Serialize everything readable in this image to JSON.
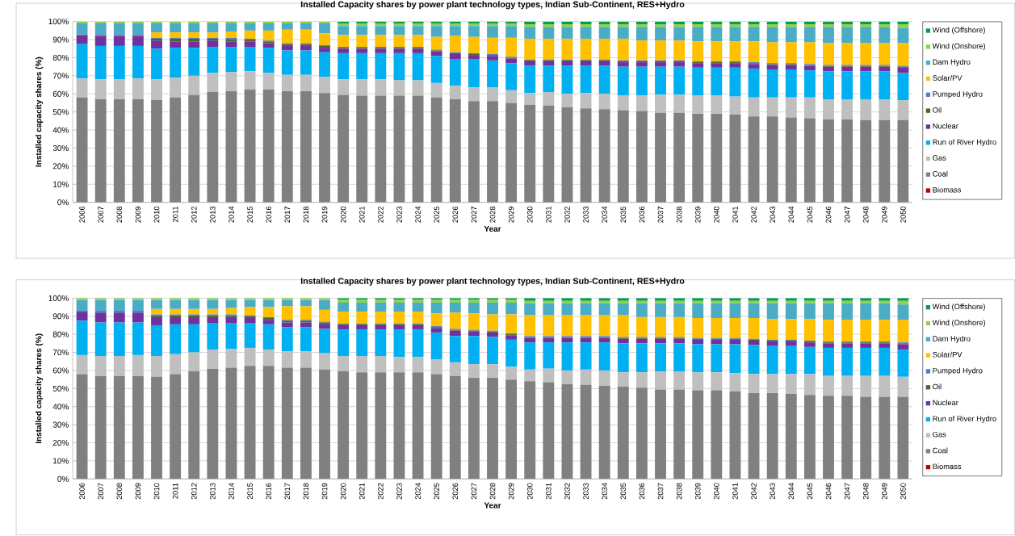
{
  "chart_data": [
    {
      "type": "bar",
      "stacked": true,
      "title": "Installed Capacity shares by power plant technology types, Indian Sub-Continent, RES+Hydro",
      "xlabel": "Year",
      "ylabel": "Installed capacity shares (%)",
      "legend": "right",
      "grid": "y",
      "categories": [
        "2006",
        "2007",
        "2008",
        "2009",
        "2010",
        "2011",
        "2012",
        "2013",
        "2014",
        "2015",
        "2016",
        "2017",
        "2018",
        "2019",
        "2020",
        "2021",
        "2022",
        "2023",
        "2024",
        "2025",
        "2026",
        "2027",
        "2028",
        "2029",
        "2030",
        "2031",
        "2032",
        "2033",
        "2034",
        "2035",
        "2036",
        "2037",
        "2038",
        "2039",
        "2040",
        "2041",
        "2042",
        "2043",
        "2044",
        "2045",
        "2046",
        "2047",
        "2048",
        "2049",
        "2050"
      ],
      "ylim": [
        0,
        100
      ],
      "yticks": [
        {
          "value": 0,
          "label": "0%"
        },
        {
          "value": 10,
          "label": "10%"
        },
        {
          "value": 20,
          "label": "20%"
        },
        {
          "value": 30,
          "label": "30%"
        },
        {
          "value": 40,
          "label": "40%"
        },
        {
          "value": 50,
          "label": "50%"
        },
        {
          "value": 60,
          "label": "60%"
        },
        {
          "value": 70,
          "label": "70%"
        },
        {
          "value": 80,
          "label": "80%"
        },
        {
          "value": 90,
          "label": "90%"
        },
        {
          "value": 100,
          "label": "100%"
        }
      ],
      "series": [
        {
          "name": "Biomass",
          "color": "#c00000",
          "values": [
            0,
            0,
            0,
            0,
            0,
            0,
            0,
            0,
            0,
            0,
            0,
            0,
            0,
            0,
            0,
            0,
            0,
            0,
            0,
            0,
            0,
            0,
            0,
            0,
            0,
            0,
            0,
            0,
            0,
            0,
            0,
            0,
            0,
            0,
            0,
            0,
            0,
            0,
            0,
            0,
            0,
            0,
            0,
            0,
            0
          ]
        },
        {
          "name": "Coal",
          "color": "#808080",
          "values": [
            58,
            57,
            57,
            57,
            56.5,
            58,
            59.5,
            61,
            61.5,
            62.5,
            62.5,
            61.5,
            61.5,
            60.5,
            59.5,
            59,
            59,
            59,
            59,
            58,
            57,
            56,
            56,
            55,
            54,
            53.5,
            52.5,
            52,
            51.5,
            51,
            50.5,
            49.5,
            49.5,
            49,
            49,
            48.5,
            47.5,
            47.5,
            47,
            46.5,
            46,
            46,
            45.5,
            45.5,
            45.5
          ]
        },
        {
          "name": "Gas",
          "color": "#bfbfbf",
          "values": [
            10.5,
            11,
            11,
            11.5,
            11.5,
            11,
            10.5,
            10.5,
            10.5,
            10,
            9,
            9,
            9,
            9,
            8.5,
            9,
            9,
            8.5,
            8.5,
            8,
            7.5,
            7.5,
            7.5,
            7,
            6.5,
            7.5,
            7.5,
            8.5,
            8.5,
            8,
            8.5,
            10,
            10,
            10,
            10,
            10,
            10.5,
            10.5,
            11,
            11.5,
            11,
            11,
            11.5,
            11.5,
            11
          ]
        },
        {
          "name": "Run of River Hydro",
          "color": "#00b0f0",
          "values": [
            19,
            18.5,
            18.5,
            18,
            17,
            16.5,
            15.5,
            14.5,
            14,
            13.5,
            14,
            13.5,
            13.5,
            13.5,
            14.5,
            14.5,
            14.5,
            15,
            15,
            15,
            14.5,
            15.5,
            15,
            15,
            15,
            14.5,
            15.5,
            15,
            15.5,
            16,
            16,
            15.5,
            15.5,
            15.5,
            15.5,
            16,
            16,
            15.5,
            15.5,
            15,
            15.5,
            15.5,
            15.5,
            15.5,
            15
          ]
        },
        {
          "name": "Nuclear",
          "color": "#7030a0",
          "values": [
            5,
            5.5,
            5.5,
            5.5,
            4.5,
            3.5,
            3.5,
            3.5,
            3,
            3,
            2.5,
            2.5,
            2.5,
            2.5,
            2.5,
            2.5,
            2.5,
            2.5,
            2.5,
            2.5,
            3,
            2.5,
            2.5,
            2.5,
            2.5,
            2.5,
            2.5,
            2.5,
            2.5,
            2.5,
            2.5,
            2.5,
            2.5,
            2.5,
            2.5,
            2.5,
            2.5,
            2.5,
            2.5,
            2.5,
            2.5,
            2.5,
            2.5,
            2.5,
            3
          ]
        },
        {
          "name": "Oil",
          "color": "#4f6228",
          "values": [
            null,
            null,
            null,
            null,
            1,
            1.5,
            1.5,
            1,
            1,
            1,
            1,
            1,
            1,
            1,
            0.5,
            0.5,
            0.5,
            0.5,
            0.5,
            0.5,
            0.5,
            0.5,
            0.5,
            0.5,
            0.5,
            0.5,
            0.5,
            0.5,
            0.5,
            0.5,
            0.5,
            0.5,
            0.5,
            0.5,
            0.5,
            0.5,
            0.5,
            0.5,
            0.5,
            0.5,
            0.5,
            0.5,
            0.5,
            0.5,
            0.5
          ]
        },
        {
          "name": "Pumped Hydro",
          "color": "#4f81bd",
          "values": [
            0.5,
            1,
            1,
            1,
            0.5,
            0.5,
            0.5,
            0.5,
            1,
            0.5,
            0.5,
            0.5,
            0.5,
            0.5,
            0.5,
            0.5,
            0.5,
            0.5,
            0.5,
            0.5,
            0.5,
            0.5,
            0.5,
            0.5,
            0.5,
            0.5,
            0.5,
            0.5,
            0.5,
            0.5,
            0.5,
            0.5,
            0.5,
            0.5,
            0.5,
            0.5,
            0.5,
            0.5,
            0.5,
            0.5,
            0.5,
            0.5,
            0.5,
            0.5,
            0.5
          ]
        },
        {
          "name": "Solar/PV",
          "color": "#ffc000",
          "values": [
            0,
            0,
            0,
            0,
            3,
            3,
            3,
            3,
            3.5,
            4.5,
            5.5,
            7.5,
            7.5,
            6.5,
            6.5,
            6.5,
            6.5,
            6.5,
            6.5,
            7,
            9,
            9,
            9,
            10.5,
            11.5,
            11.5,
            11.5,
            11.5,
            11.5,
            12,
            11,
            11,
            11,
            11,
            11,
            11,
            11.5,
            11.5,
            11.5,
            12,
            12,
            12,
            12,
            12,
            12.5
          ]
        },
        {
          "name": "Dam Hydro",
          "color": "#4bacc6",
          "values": [
            6,
            6,
            6,
            6,
            5,
            5,
            5,
            5,
            4.5,
            4,
            4,
            3.5,
            3.5,
            5.5,
            5,
            5,
            5,
            5,
            5,
            6,
            5.5,
            6,
            6.5,
            6.5,
            6.5,
            6.5,
            6.5,
            6.5,
            6.5,
            6.5,
            7.5,
            7.5,
            7.5,
            8,
            8,
            8,
            8,
            8.5,
            8.5,
            8.5,
            9,
            9,
            9,
            9,
            8.5
          ]
        },
        {
          "name": "Wind (Onshore)",
          "color": "#92d050",
          "values": [
            1,
            1,
            1,
            1,
            1,
            1,
            1,
            1,
            1,
            1,
            1,
            1,
            1,
            1,
            1.5,
            1.5,
            1.5,
            1.5,
            1.5,
            1.5,
            1.5,
            1.5,
            1.5,
            1.5,
            1.5,
            1.5,
            1.5,
            1.5,
            1.5,
            1.5,
            1.5,
            1.5,
            1.5,
            1.5,
            1.5,
            1.5,
            1.5,
            1.5,
            1.5,
            1.5,
            1.5,
            1.5,
            1.5,
            1.5,
            2
          ]
        },
        {
          "name": "Wind (Offshore)",
          "color": "#00a050",
          "values": [
            0,
            0,
            0,
            0,
            0,
            0,
            0,
            0,
            0,
            0,
            0,
            0,
            0,
            0,
            1,
            1,
            1,
            1,
            1,
            1,
            1,
            1,
            1,
            1,
            1.5,
            1.5,
            1.5,
            1.5,
            1.5,
            1.5,
            1.5,
            1.5,
            1.5,
            1.5,
            1.5,
            1.5,
            1.5,
            1.5,
            1.5,
            1.5,
            1.5,
            1.5,
            1.5,
            1.5,
            1.5
          ]
        }
      ]
    },
    {
      "type": "bar",
      "stacked": true,
      "title": "Installed Capacity shares by power plant technology types, Indian Sub-Continent, RES+Hydro",
      "xlabel": "Year",
      "ylabel": "Installed capacity shares (%)",
      "legend": "right",
      "grid": "y",
      "categories": [
        "2006",
        "2007",
        "2008",
        "2009",
        "2010",
        "2011",
        "2012",
        "2013",
        "2014",
        "2015",
        "2016",
        "2017",
        "2018",
        "2019",
        "2020",
        "2021",
        "2022",
        "2023",
        "2024",
        "2025",
        "2026",
        "2027",
        "2028",
        "2029",
        "2030",
        "2031",
        "2032",
        "2033",
        "2034",
        "2035",
        "2036",
        "2037",
        "2038",
        "2039",
        "2040",
        "2041",
        "2042",
        "2043",
        "2044",
        "2045",
        "2046",
        "2047",
        "2048",
        "2049",
        "2050"
      ],
      "ylim": [
        0,
        100
      ],
      "yticks": [
        {
          "value": 0,
          "label": "0%"
        },
        {
          "value": 10,
          "label": "10%"
        },
        {
          "value": 20,
          "label": "20%"
        },
        {
          "value": 30,
          "label": "30%"
        },
        {
          "value": 40,
          "label": "40%"
        },
        {
          "value": 50,
          "label": "50%"
        },
        {
          "value": 60,
          "label": "60%"
        },
        {
          "value": 70,
          "label": "70%"
        },
        {
          "value": 80,
          "label": "80%"
        },
        {
          "value": 90,
          "label": "90%"
        },
        {
          "value": 100,
          "label": "100%"
        }
      ],
      "series": [
        {
          "name": "Biomass",
          "color": "#c00000",
          "values": [
            0,
            0,
            0,
            0,
            0,
            0,
            0,
            0,
            0,
            0,
            0,
            0,
            0,
            0,
            0,
            0,
            0,
            0,
            0,
            0,
            0,
            0,
            0,
            0,
            0,
            0,
            0,
            0,
            0,
            0,
            0,
            0,
            0,
            0,
            0,
            0,
            0,
            0,
            0,
            0,
            0,
            0,
            0,
            0,
            0
          ]
        },
        {
          "name": "Coal",
          "color": "#808080",
          "values": [
            58,
            57,
            57,
            57,
            56.5,
            58,
            59.5,
            61,
            61.5,
            62.5,
            62.5,
            61.5,
            61.5,
            60.5,
            59.5,
            59,
            59,
            59,
            59,
            58,
            57,
            56,
            56,
            55,
            54,
            53.5,
            52.5,
            52,
            51.5,
            51,
            50.5,
            49.5,
            49.5,
            49,
            49,
            48.5,
            47.5,
            47.5,
            47,
            46.5,
            46,
            46,
            45.5,
            45.5,
            45.5
          ]
        },
        {
          "name": "Gas",
          "color": "#bfbfbf",
          "values": [
            10.5,
            11,
            11,
            11.5,
            11.5,
            11,
            10.5,
            10.5,
            10.5,
            10,
            9,
            9,
            9,
            9,
            8.5,
            9,
            9,
            8.5,
            8.5,
            8,
            7.5,
            7.5,
            7.5,
            7,
            6.5,
            7.5,
            7.5,
            8.5,
            8.5,
            8,
            8.5,
            10,
            10,
            10,
            10,
            10,
            10.5,
            10.5,
            11,
            11.5,
            11,
            11,
            11.5,
            11.5,
            11
          ]
        },
        {
          "name": "Run of River Hydro",
          "color": "#00b0f0",
          "values": [
            19,
            18.5,
            18.5,
            18,
            17,
            16.5,
            15.5,
            14.5,
            14,
            13.5,
            14,
            13.5,
            13.5,
            13.5,
            14.5,
            14.5,
            14.5,
            15,
            15,
            15,
            14.5,
            15.5,
            15,
            15,
            15,
            14.5,
            15.5,
            15,
            15.5,
            16,
            16,
            15.5,
            15.5,
            15.5,
            15.5,
            16,
            16,
            15.5,
            15.5,
            15,
            15.5,
            15.5,
            15.5,
            15.5,
            15
          ]
        },
        {
          "name": "Nuclear",
          "color": "#7030a0",
          "values": [
            5,
            5.5,
            5.5,
            5.5,
            4.5,
            3.5,
            3.5,
            3.5,
            3,
            3,
            2.5,
            2.5,
            2.5,
            2.5,
            2.5,
            2.5,
            2.5,
            2.5,
            2.5,
            2.5,
            3,
            2.5,
            2.5,
            2.5,
            2.5,
            2.5,
            2.5,
            2.5,
            2.5,
            2.5,
            2.5,
            2.5,
            2.5,
            2.5,
            2.5,
            2.5,
            2.5,
            2.5,
            2.5,
            2.5,
            2.5,
            2.5,
            2.5,
            2.5,
            3
          ]
        },
        {
          "name": "Oil",
          "color": "#4f6228",
          "values": [
            null,
            null,
            null,
            null,
            1,
            1.5,
            1.5,
            1,
            1,
            1,
            1,
            1,
            1,
            1,
            0.5,
            0.5,
            0.5,
            0.5,
            0.5,
            0.5,
            0.5,
            0.5,
            0.5,
            0.5,
            0.5,
            0.5,
            0.5,
            0.5,
            0.5,
            0.5,
            0.5,
            0.5,
            0.5,
            0.5,
            0.5,
            0.5,
            0.5,
            0.5,
            0.5,
            0.5,
            0.5,
            0.5,
            0.5,
            0.5,
            0.5
          ]
        },
        {
          "name": "Pumped Hydro",
          "color": "#4f81bd",
          "values": [
            0.5,
            1,
            1,
            1,
            0.5,
            0.5,
            0.5,
            0.5,
            1,
            0.5,
            0.5,
            0.5,
            0.5,
            0.5,
            0.5,
            0.5,
            0.5,
            0.5,
            0.5,
            0.5,
            0.5,
            0.5,
            0.5,
            0.5,
            0.5,
            0.5,
            0.5,
            0.5,
            0.5,
            0.5,
            0.5,
            0.5,
            0.5,
            0.5,
            0.5,
            0.5,
            0.5,
            0.5,
            0.5,
            0.5,
            0.5,
            0.5,
            0.5,
            0.5,
            0.5
          ]
        },
        {
          "name": "Solar/PV",
          "color": "#ffc000",
          "values": [
            0,
            0,
            0,
            0,
            3,
            3,
            3,
            3,
            3.5,
            4.5,
            5.5,
            7.5,
            7.5,
            6.5,
            6.5,
            6.5,
            6.5,
            6.5,
            6.5,
            7,
            9,
            9,
            9,
            10.5,
            11.5,
            11.5,
            11.5,
            11.5,
            11.5,
            12,
            11,
            11,
            11,
            11,
            11,
            11,
            11.5,
            11.5,
            11.5,
            12,
            12,
            12,
            12,
            12,
            12.5
          ]
        },
        {
          "name": "Dam Hydro",
          "color": "#4bacc6",
          "values": [
            6,
            6,
            6,
            6,
            5,
            5,
            5,
            5,
            4.5,
            4,
            4,
            3.5,
            3.5,
            5.5,
            5,
            5,
            5,
            5,
            5,
            6,
            5.5,
            6,
            6.5,
            6.5,
            6.5,
            6.5,
            6.5,
            6.5,
            6.5,
            6.5,
            7.5,
            7.5,
            7.5,
            8,
            8,
            8,
            8,
            8.5,
            8.5,
            8.5,
            9,
            9,
            9,
            9,
            8.5
          ]
        },
        {
          "name": "Wind (Onshore)",
          "color": "#92d050",
          "values": [
            1,
            1,
            1,
            1,
            1,
            1,
            1,
            1,
            1,
            1,
            1,
            1,
            1,
            1,
            1.5,
            1.5,
            1.5,
            1.5,
            1.5,
            1.5,
            1.5,
            1.5,
            1.5,
            1.5,
            1.5,
            1.5,
            1.5,
            1.5,
            1.5,
            1.5,
            1.5,
            1.5,
            1.5,
            1.5,
            1.5,
            1.5,
            1.5,
            1.5,
            1.5,
            1.5,
            1.5,
            1.5,
            1.5,
            1.5,
            2
          ]
        },
        {
          "name": "Wind (Offshore)",
          "color": "#00a050",
          "values": [
            0,
            0,
            0,
            0,
            0,
            0,
            0,
            0,
            0,
            0,
            0,
            0,
            0,
            0,
            1,
            1,
            1,
            1,
            1,
            1,
            1,
            1,
            1,
            1,
            1.5,
            1.5,
            1.5,
            1.5,
            1.5,
            1.5,
            1.5,
            1.5,
            1.5,
            1.5,
            1.5,
            1.5,
            1.5,
            1.5,
            1.5,
            1.5,
            1.5,
            1.5,
            1.5,
            1.5,
            1.5
          ]
        }
      ]
    }
  ]
}
